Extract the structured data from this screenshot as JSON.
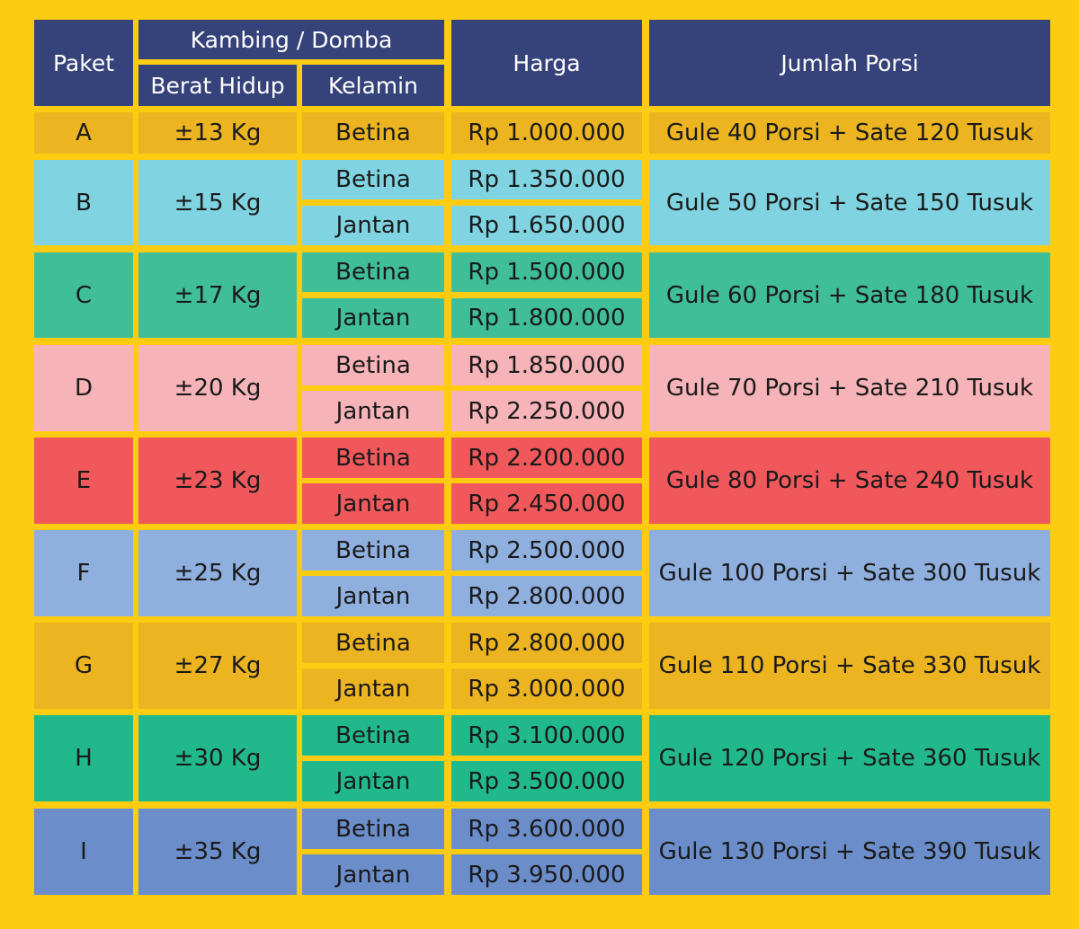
{
  "header": {
    "paket": "Paket",
    "group": "Kambing / Domba",
    "berat": "Berat Hidup",
    "kelamin": "Kelamin",
    "harga": "Harga",
    "porsi": "Jumlah Porsi"
  },
  "colors": {
    "background": "#FDCC10",
    "header": "#36427A",
    "A": "#ECB421",
    "B": "#80D4E2",
    "C": "#3FBE98",
    "D": "#F6B3B8",
    "E": "#F0585B",
    "F": "#8FAFDE",
    "G": "#ECB421",
    "H": "#21B98C",
    "I": "#6B8DC9"
  },
  "rows": [
    {
      "paket": "A",
      "berat": "±13 Kg",
      "porsi": "Gule 40 Porsi + Sate 120 Tusuk",
      "options": [
        {
          "kelamin": "Betina",
          "harga": "Rp 1.000.000"
        }
      ]
    },
    {
      "paket": "B",
      "berat": "±15 Kg",
      "porsi": "Gule 50 Porsi + Sate 150 Tusuk",
      "options": [
        {
          "kelamin": "Betina",
          "harga": "Rp 1.350.000"
        },
        {
          "kelamin": "Jantan",
          "harga": "Rp 1.650.000"
        }
      ]
    },
    {
      "paket": "C",
      "berat": "±17 Kg",
      "porsi": "Gule 60 Porsi + Sate 180 Tusuk",
      "options": [
        {
          "kelamin": "Betina",
          "harga": "Rp 1.500.000"
        },
        {
          "kelamin": "Jantan",
          "harga": "Rp 1.800.000"
        }
      ]
    },
    {
      "paket": "D",
      "berat": "±20 Kg",
      "porsi": "Gule 70 Porsi + Sate 210 Tusuk",
      "options": [
        {
          "kelamin": "Betina",
          "harga": "Rp 1.850.000"
        },
        {
          "kelamin": "Jantan",
          "harga": "Rp 2.250.000"
        }
      ]
    },
    {
      "paket": "E",
      "berat": "±23 Kg",
      "porsi": "Gule 80 Porsi + Sate 240 Tusuk",
      "options": [
        {
          "kelamin": "Betina",
          "harga": "Rp 2.200.000"
        },
        {
          "kelamin": "Jantan",
          "harga": "Rp 2.450.000"
        }
      ]
    },
    {
      "paket": "F",
      "berat": "±25 Kg",
      "porsi": "Gule 100 Porsi + Sate 300 Tusuk",
      "options": [
        {
          "kelamin": "Betina",
          "harga": "Rp 2.500.000"
        },
        {
          "kelamin": "Jantan",
          "harga": "Rp 2.800.000"
        }
      ]
    },
    {
      "paket": "G",
      "berat": "±27 Kg",
      "porsi": "Gule 110 Porsi + Sate 330 Tusuk",
      "options": [
        {
          "kelamin": "Betina",
          "harga": "Rp 2.800.000"
        },
        {
          "kelamin": "Jantan",
          "harga": "Rp 3.000.000"
        }
      ]
    },
    {
      "paket": "H",
      "berat": "±30 Kg",
      "porsi": "Gule 120 Porsi + Sate 360 Tusuk",
      "options": [
        {
          "kelamin": "Betina",
          "harga": "Rp 3.100.000"
        },
        {
          "kelamin": "Jantan",
          "harga": "Rp 3.500.000"
        }
      ]
    },
    {
      "paket": "I",
      "berat": "±35 Kg",
      "porsi": "Gule 130 Porsi + Sate 390 Tusuk",
      "options": [
        {
          "kelamin": "Betina",
          "harga": "Rp 3.600.000"
        },
        {
          "kelamin": "Jantan",
          "harga": "Rp 3.950.000"
        }
      ]
    }
  ]
}
